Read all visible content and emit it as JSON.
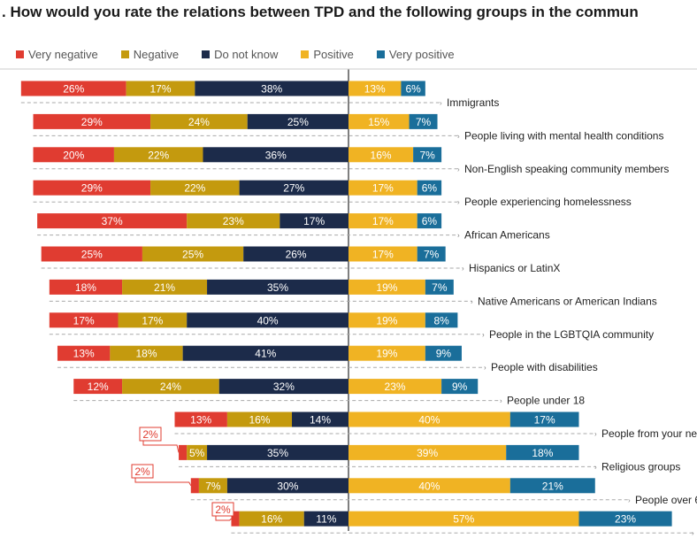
{
  "title": ". How would you rate the relations between TPD and the following groups in the commun",
  "chart_data": {
    "type": "bar",
    "orientation": "horizontal-diverging",
    "title": ". How would you rate the relations between TPD and the following groups in the commun",
    "legend": [
      "Very negative",
      "Negative",
      "Do not know",
      "Positive",
      "Very positive"
    ],
    "legend_position": "top-left",
    "colors": [
      "#e03c31",
      "#c49a0e",
      "#1c2b4a",
      "#f0b323",
      "#1a6e9a"
    ],
    "categories": [
      "Immigrants",
      "People living with mental health conditions",
      "Non-English speaking community members",
      "People experiencing homelessness",
      "African Americans",
      "Hispanics or LatinX",
      "Native Americans or American Indians",
      "People in the LGBTQIA community",
      "People with disabilities",
      "People under 18",
      "People from your ne",
      "Religious groups",
      "People over 6",
      ""
    ],
    "series": [
      {
        "name": "Very negative",
        "values": [
          26,
          29,
          20,
          29,
          37,
          25,
          18,
          17,
          13,
          12,
          13,
          2,
          2,
          2
        ]
      },
      {
        "name": "Negative",
        "values": [
          17,
          24,
          22,
          22,
          23,
          25,
          21,
          17,
          18,
          24,
          16,
          5,
          7,
          16
        ]
      },
      {
        "name": "Do not know",
        "values": [
          38,
          25,
          36,
          27,
          17,
          26,
          35,
          40,
          41,
          32,
          14,
          35,
          30,
          11
        ]
      },
      {
        "name": "Positive",
        "values": [
          13,
          15,
          16,
          17,
          17,
          17,
          19,
          19,
          19,
          23,
          40,
          39,
          40,
          57
        ]
      },
      {
        "name": "Very positive",
        "values": [
          6,
          7,
          7,
          6,
          6,
          7,
          7,
          8,
          9,
          9,
          17,
          18,
          21,
          23
        ]
      }
    ],
    "value_suffix": "%",
    "callout_rows": [
      11,
      12,
      13
    ]
  }
}
